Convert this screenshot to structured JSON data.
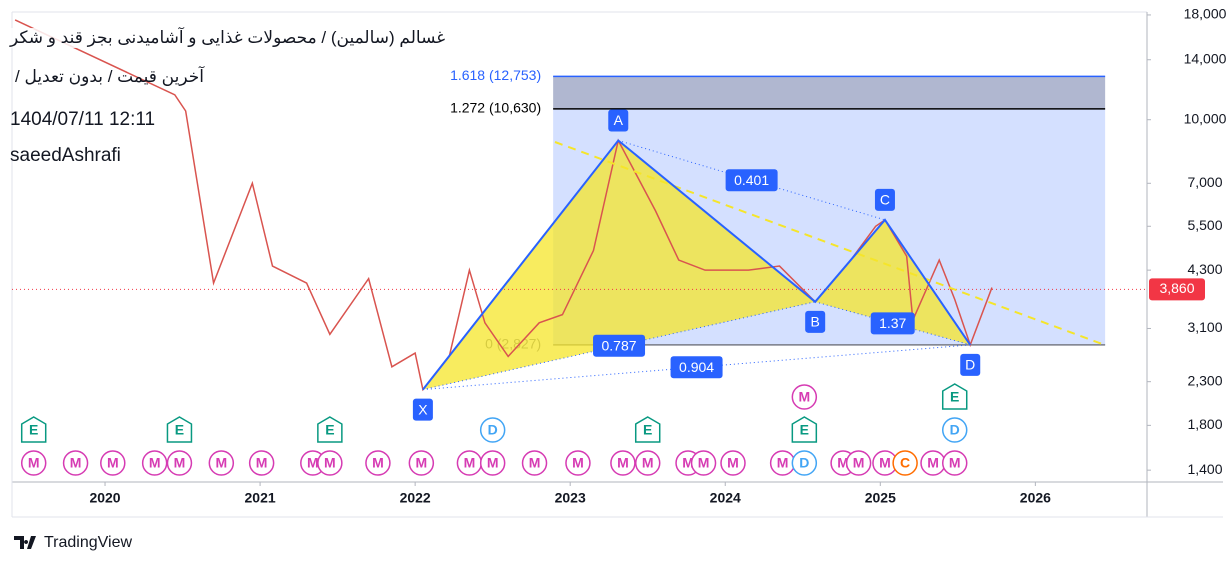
{
  "header": {
    "title": "غسالم (سالمین) / محصولات غذایی و آشامیدنی بجز قند و شکر",
    "subtitle": "آخرین قیمت / بدون تعدیل /",
    "datetime": "1404/07/11 12:11",
    "author": "saeedAshrafi"
  },
  "footer": {
    "brand": "TradingView"
  },
  "chart_data": {
    "type": "line",
    "log_scale": true,
    "grid": false,
    "x": [
      2019.42,
      2020.45,
      2020.52,
      2020.7,
      2020.95,
      2021.08,
      2021.3,
      2021.45,
      2021.7,
      2021.85,
      2022.0,
      2022.05,
      2022.22,
      2022.35,
      2022.45,
      2022.6,
      2022.8,
      2022.95,
      2023.15,
      2023.31,
      2023.55,
      2023.7,
      2023.87,
      2024.15,
      2024.35,
      2024.58,
      2024.8,
      2024.97,
      2025.03,
      2025.17,
      2025.21,
      2025.38,
      2025.48,
      2025.58,
      2025.72
    ],
    "series": [
      {
        "color": "#d9544f",
        "values": [
          17500,
          11500,
          10500,
          4000,
          7000,
          4400,
          4000,
          3000,
          4100,
          2500,
          2700,
          2200,
          2650,
          4300,
          3200,
          2650,
          3200,
          3350,
          4800,
          8900,
          6000,
          4550,
          4300,
          4300,
          4400,
          3600,
          4500,
          5500,
          5700,
          4650,
          3250,
          4550,
          3650,
          2827,
          3900
        ]
      }
    ],
    "xlim": [
      2019.4,
      2026.72
    ],
    "xticks": [
      2020,
      2021,
      2022,
      2023,
      2024,
      2025,
      2026
    ],
    "ylim": [
      1310,
      18300
    ],
    "yticks": [
      {
        "value": 1400,
        "label": "1,400"
      },
      {
        "value": 1800,
        "label": "1,800"
      },
      {
        "value": 2300,
        "label": "2,300"
      },
      {
        "value": 3100,
        "label": "3,100"
      },
      {
        "value": 4300,
        "label": "4,300"
      },
      {
        "value": 5500,
        "label": "5,500"
      },
      {
        "value": 7000,
        "label": "7,000"
      },
      {
        "value": 10000,
        "label": "10,000"
      },
      {
        "value": 14000,
        "label": "14,000"
      },
      {
        "value": 18000,
        "label": "18,000"
      }
    ],
    "last_price": {
      "value": 3860,
      "label": "3,860",
      "color": "#f23645"
    },
    "fib_xrange": [
      2022.89,
      2026.45
    ],
    "fib_levels": [
      {
        "value": 12753,
        "label": "1.618 (12,753)",
        "color": "#2962ff"
      },
      {
        "value": 10630,
        "label": "1.272 (10,630)",
        "color": "#000000"
      },
      {
        "value": 2827,
        "label": "0 (2,827)",
        "color": "#787b86"
      }
    ],
    "pattern": {
      "color": "#2962ff",
      "fill": "#f5e52a",
      "points": [
        {
          "label": "X",
          "x": 2022.05,
          "y": 2200
        },
        {
          "label": "A",
          "x": 2023.31,
          "y": 8900
        },
        {
          "label": "B",
          "x": 2024.58,
          "y": 3600
        },
        {
          "label": "C",
          "x": 2025.03,
          "y": 5700
        },
        {
          "label": "D",
          "x": 2025.58,
          "y": 2827
        }
      ],
      "ratios": [
        {
          "from": "A",
          "to": "C",
          "label": "0.401"
        },
        {
          "from": "X",
          "to": "B",
          "label": "0.787"
        },
        {
          "from": "X",
          "to": "D",
          "label": "0.904"
        },
        {
          "from": "B",
          "to": "D",
          "label": "1.37"
        }
      ]
    },
    "event_colors": {
      "M": "#d63bb3",
      "E": "#089981",
      "D": "#42a5f5",
      "C": "#ff6d00"
    },
    "events": [
      {
        "label": "M",
        "x": 2019.54
      },
      {
        "label": "E",
        "x": 2019.54
      },
      {
        "label": "M",
        "x": 2019.81
      },
      {
        "label": "M",
        "x": 2020.05
      },
      {
        "label": "M",
        "x": 2020.32
      },
      {
        "label": "M",
        "x": 2020.48
      },
      {
        "label": "E",
        "x": 2020.48
      },
      {
        "label": "M",
        "x": 2020.75
      },
      {
        "label": "M",
        "x": 2021.01
      },
      {
        "label": "M",
        "x": 2021.34
      },
      {
        "label": "M",
        "x": 2021.45
      },
      {
        "label": "E",
        "x": 2021.45
      },
      {
        "label": "M",
        "x": 2021.76
      },
      {
        "label": "M",
        "x": 2022.04
      },
      {
        "label": "M",
        "x": 2022.35
      },
      {
        "label": "M",
        "x": 2022.5
      },
      {
        "label": "D",
        "x": 2022.5
      },
      {
        "label": "M",
        "x": 2022.77
      },
      {
        "label": "M",
        "x": 2023.05
      },
      {
        "label": "M",
        "x": 2023.34
      },
      {
        "label": "M",
        "x": 2023.5
      },
      {
        "label": "E",
        "x": 2023.5
      },
      {
        "label": "M",
        "x": 2023.76
      },
      {
        "label": "M",
        "x": 2023.86
      },
      {
        "label": "M",
        "x": 2024.05
      },
      {
        "label": "M",
        "x": 2024.37
      },
      {
        "label": "D",
        "x": 2024.51
      },
      {
        "label": "E",
        "x": 2024.51
      },
      {
        "label": "M",
        "x": 2024.51
      },
      {
        "label": "M",
        "x": 2024.76
      },
      {
        "label": "M",
        "x": 2024.86
      },
      {
        "label": "M",
        "x": 2025.03
      },
      {
        "label": "C",
        "x": 2025.16
      },
      {
        "label": "M",
        "x": 2025.34
      },
      {
        "label": "M",
        "x": 2025.48
      },
      {
        "label": "D",
        "x": 2025.48
      },
      {
        "label": "E",
        "x": 2025.48
      }
    ]
  }
}
